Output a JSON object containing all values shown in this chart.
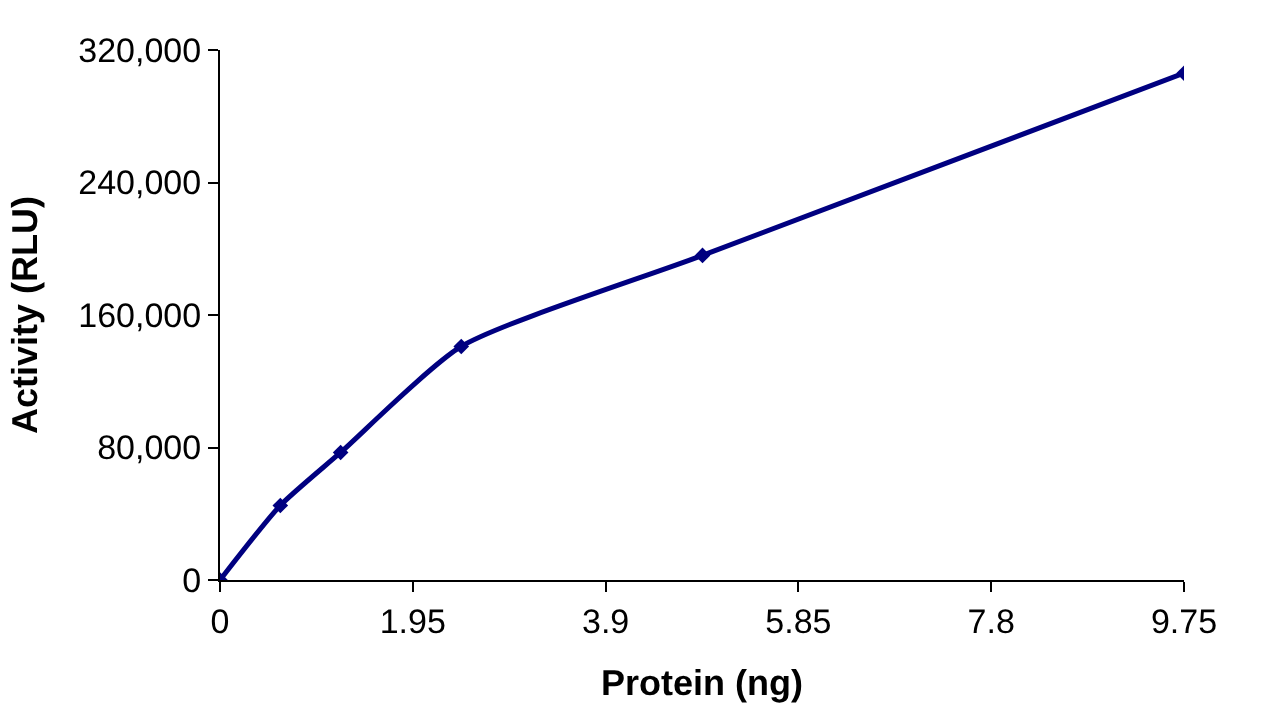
{
  "chart_data": {
    "type": "line",
    "xlabel": "Protein (ng)",
    "ylabel": "Activity (RLU)",
    "x": [
      0,
      0.61,
      1.22,
      2.44,
      4.88,
      9.75
    ],
    "series": [
      {
        "color": "#000080",
        "values": [
          0,
          45000,
          77000,
          141000,
          196000,
          306000
        ]
      }
    ],
    "xlim": [
      0,
      9.75
    ],
    "xticks": [
      0,
      1.95,
      3.9,
      5.85,
      7.8,
      9.75
    ],
    "ylim": [
      0,
      320000
    ],
    "yticks": [
      {
        "value": 0,
        "label": "0"
      },
      {
        "value": 80000,
        "label": "80,000"
      },
      {
        "value": 160000,
        "label": "160,000"
      },
      {
        "value": 240000,
        "label": "240,000"
      },
      {
        "value": 320000,
        "label": "320,000"
      }
    ],
    "marker": "diamond",
    "line_style": "solid"
  }
}
